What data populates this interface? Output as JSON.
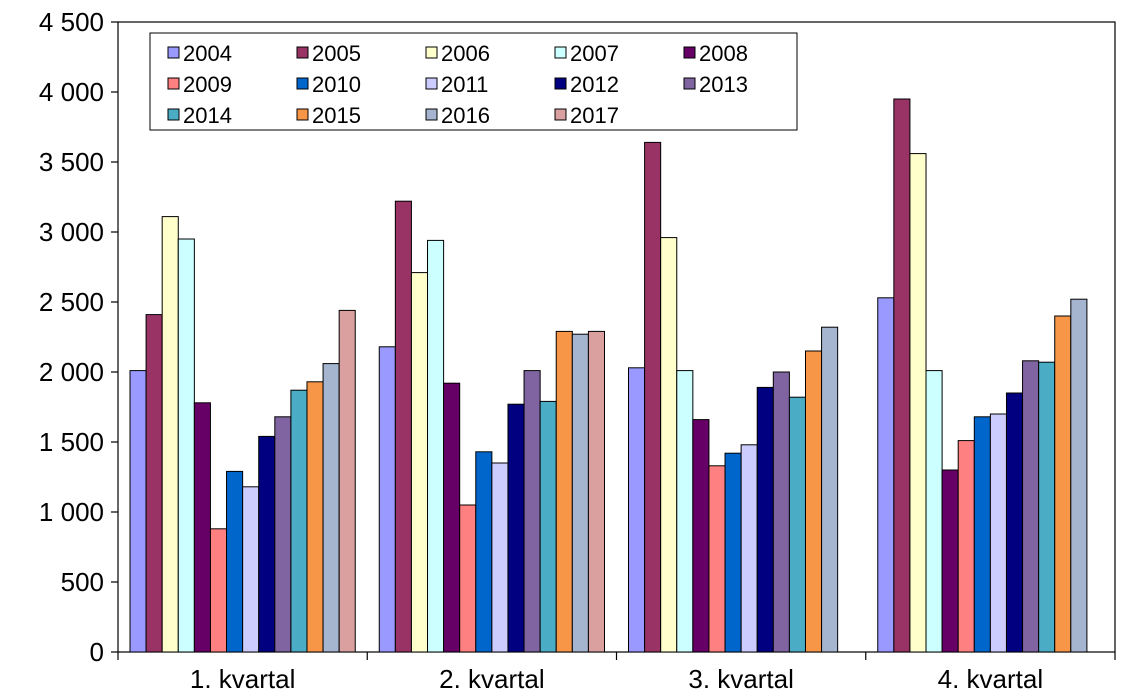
{
  "chart_data": {
    "type": "bar",
    "title": "",
    "xlabel": "",
    "ylabel": "",
    "ylim": [
      0,
      4500
    ],
    "yticks": [
      0,
      500,
      1000,
      1500,
      2000,
      2500,
      3000,
      3500,
      4000,
      4500
    ],
    "ytick_labels": [
      "0",
      "500",
      "1 000",
      "1 500",
      "2 000",
      "2 500",
      "3 000",
      "3 500",
      "4 000",
      "4 500"
    ],
    "grid": false,
    "legend_position": "top-left",
    "categories": [
      "1. kvartal",
      "2. kvartal",
      "3. kvartal",
      "4. kvartal"
    ],
    "series": [
      {
        "name": "2004",
        "color": "#9999ff",
        "values": [
          2010,
          2180,
          2030,
          2530
        ]
      },
      {
        "name": "2005",
        "color": "#993366",
        "values": [
          2410,
          3220,
          3640,
          3950
        ]
      },
      {
        "name": "2006",
        "color": "#ffffcc",
        "values": [
          3110,
          2710,
          2960,
          3560
        ]
      },
      {
        "name": "2007",
        "color": "#ccffff",
        "values": [
          2950,
          2940,
          2010,
          2010
        ]
      },
      {
        "name": "2008",
        "color": "#660066",
        "values": [
          1780,
          1920,
          1660,
          1300
        ]
      },
      {
        "name": "2009",
        "color": "#ff8080",
        "values": [
          880,
          1050,
          1330,
          1510
        ]
      },
      {
        "name": "2010",
        "color": "#0066cc",
        "values": [
          1290,
          1430,
          1420,
          1680
        ]
      },
      {
        "name": "2011",
        "color": "#ccccff",
        "values": [
          1180,
          1350,
          1480,
          1700
        ]
      },
      {
        "name": "2012",
        "color": "#000080",
        "values": [
          1540,
          1770,
          1890,
          1850
        ]
      },
      {
        "name": "2013",
        "color": "#8064a2",
        "values": [
          1680,
          2010,
          2000,
          2080
        ]
      },
      {
        "name": "2014",
        "color": "#4bacc6",
        "values": [
          1870,
          1790,
          1820,
          2070
        ]
      },
      {
        "name": "2015",
        "color": "#f79646",
        "values": [
          1930,
          2290,
          2150,
          2400
        ]
      },
      {
        "name": "2016",
        "color": "#a5b5d0",
        "values": [
          2060,
          2270,
          2320,
          2520
        ]
      },
      {
        "name": "2017",
        "color": "#d9a09f",
        "values": [
          2440,
          2290,
          null,
          null
        ]
      }
    ]
  }
}
